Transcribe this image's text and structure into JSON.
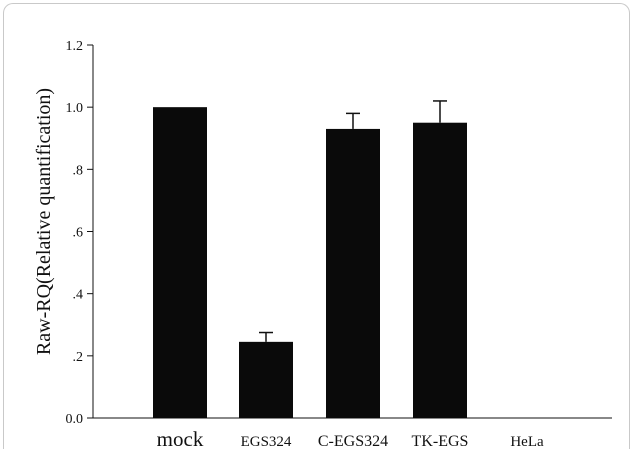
{
  "chart_data": {
    "type": "bar",
    "title": "",
    "xlabel": "",
    "ylabel": "Raw-RQ(Relative quantification)",
    "categories": [
      "mock",
      "EGS324",
      "C-EGS324",
      "TK-EGS",
      "HeLa"
    ],
    "values": [
      1.0,
      0.245,
      0.93,
      0.95,
      0.0
    ],
    "error_bars": [
      0,
      0.03,
      0.05,
      0.07,
      0
    ],
    "ylim": [
      0,
      1.2
    ],
    "yticks": [
      0,
      0.2,
      0.4,
      0.6,
      0.8,
      1.0,
      1.2
    ],
    "ytick_labels": [
      "0.0",
      ".2",
      ".4",
      ".6",
      ".8",
      "1.0",
      "1.2"
    ],
    "grid": false,
    "bar_color": "#0a0a0a",
    "frame_color": "#c9c9c9"
  }
}
